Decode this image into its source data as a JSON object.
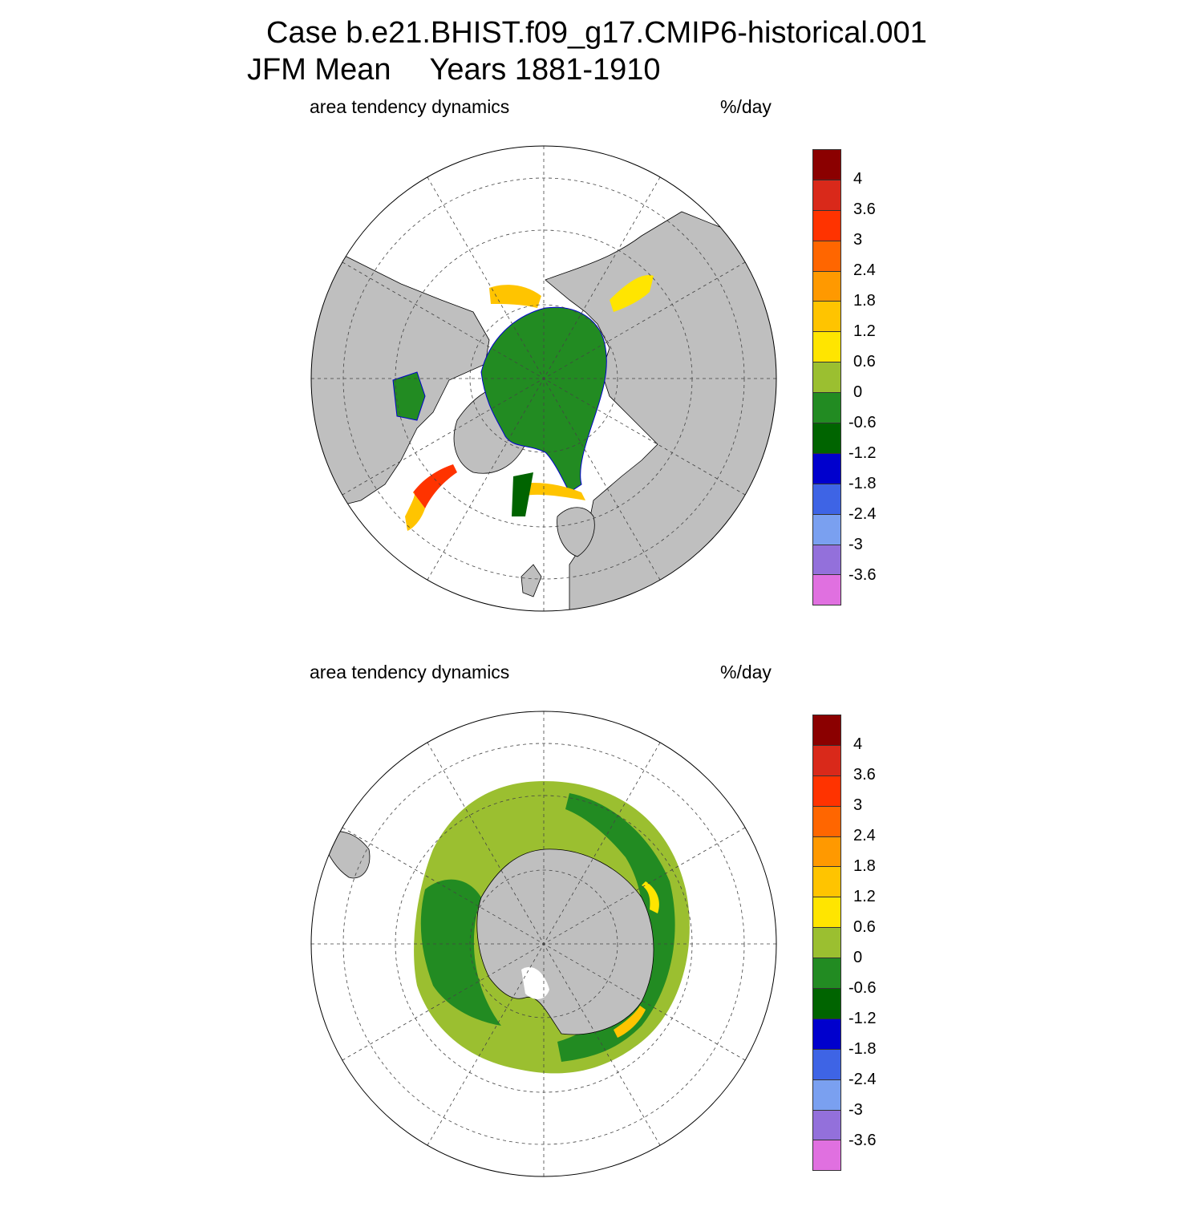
{
  "title": {
    "line1": "Case b.e21.BHIST.f09_g17.CMIP6-historical.001",
    "line2_mean": "JFM Mean",
    "line2_years": "Years 1881-1910"
  },
  "panels": [
    {
      "id": "north",
      "hemisphere": "north",
      "left_label": "area tendency dynamics",
      "right_label": "%/day"
    },
    {
      "id": "south",
      "hemisphere": "south",
      "left_label": "area tendency dynamics",
      "right_label": "%/day"
    }
  ],
  "colorbar": {
    "units": "%/day",
    "levels": [
      "4",
      "3.6",
      "3",
      "2.4",
      "1.8",
      "1.2",
      "0.6",
      "0",
      "-0.6",
      "-1.2",
      "-1.8",
      "-2.4",
      "-3",
      "-3.6"
    ],
    "colors": [
      "#8b0000",
      "#d9291a",
      "#ff3300",
      "#ff6600",
      "#ff9900",
      "#ffc400",
      "#ffe500",
      "#9bbf30",
      "#228b22",
      "#006400",
      "#0000cd",
      "#3e64e5",
      "#7aa0f0",
      "#9370db",
      "#e070e0"
    ]
  },
  "map_style": {
    "land": "#bfbfbf",
    "ocean": "#ffffff",
    "ice_low": "#228b22",
    "ice_edge": "#9bbf30"
  }
}
